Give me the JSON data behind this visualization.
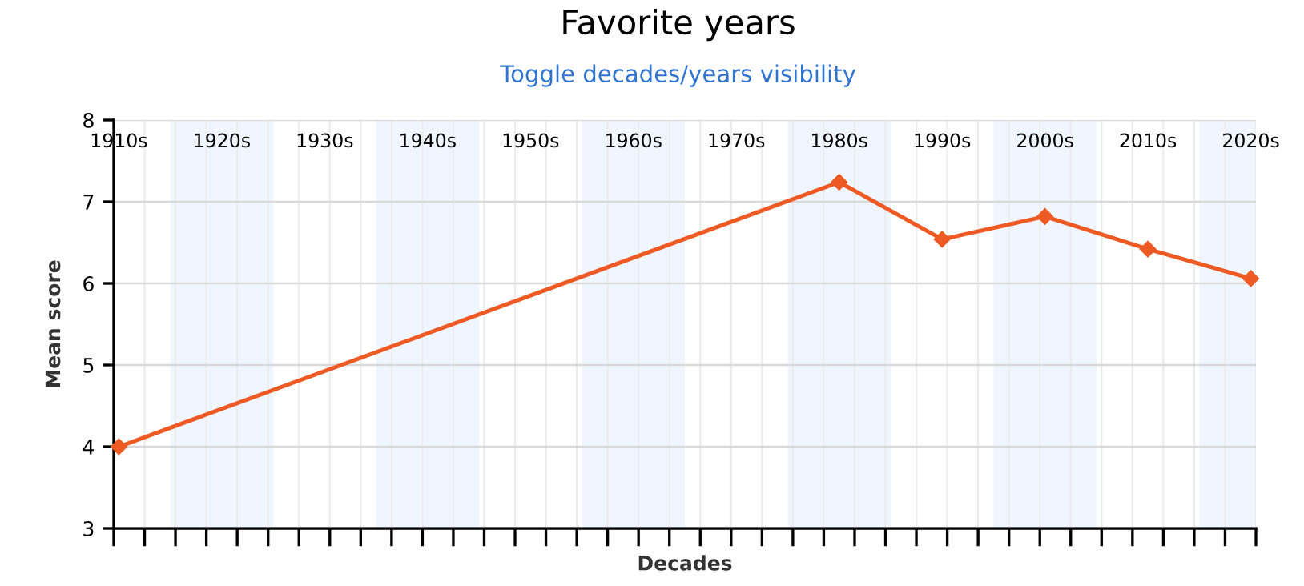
{
  "chart_data": {
    "type": "line",
    "title": "Favorite years",
    "subtitle": "Toggle decades/years visibility",
    "xlabel": "Decades",
    "ylabel": "Mean score",
    "x": [
      1910,
      1980,
      1990,
      2000,
      2010,
      2020
    ],
    "series": [
      {
        "color": "#ee5a24",
        "values": [
          4.0,
          7.24,
          6.54,
          6.82,
          6.42,
          6.06
        ]
      }
    ],
    "marker": "diamond",
    "line_style": "solid",
    "grid": true,
    "xlim": [
      1909.5,
      2020.5
    ],
    "xticks": [
      {
        "value": 1910,
        "label": "1910s"
      },
      {
        "value": 1920,
        "label": "1920s"
      },
      {
        "value": 1930,
        "label": "1930s"
      },
      {
        "value": 1940,
        "label": "1940s"
      },
      {
        "value": 1950,
        "label": "1950s"
      },
      {
        "value": 1960,
        "label": "1960s"
      },
      {
        "value": 1970,
        "label": "1970s"
      },
      {
        "value": 1980,
        "label": "1980s"
      },
      {
        "value": 1990,
        "label": "1990s"
      },
      {
        "value": 2000,
        "label": "2000s"
      },
      {
        "value": 2010,
        "label": "2010s"
      },
      {
        "value": 2020,
        "label": "2020s"
      },
      {
        "value": 1909.5,
        "label": null
      },
      {
        "value": 1912.5,
        "label": null
      },
      {
        "value": 1915.5,
        "label": null
      },
      {
        "value": 1918.5,
        "label": null
      },
      {
        "value": 1921.5,
        "label": null
      },
      {
        "value": 1924.5,
        "label": null
      },
      {
        "value": 1927.5,
        "label": null
      },
      {
        "value": 1930.5,
        "label": null
      },
      {
        "value": 1933.5,
        "label": null
      },
      {
        "value": 1936.5,
        "label": null
      },
      {
        "value": 1939.5,
        "label": null
      },
      {
        "value": 1942.5,
        "label": null
      },
      {
        "value": 1945.5,
        "label": null
      },
      {
        "value": 1948.5,
        "label": null
      },
      {
        "value": 1951.5,
        "label": null
      },
      {
        "value": 1954.5,
        "label": null
      },
      {
        "value": 1957.5,
        "label": null
      },
      {
        "value": 1960.5,
        "label": null
      },
      {
        "value": 1963.5,
        "label": null
      },
      {
        "value": 1966.5,
        "label": null
      },
      {
        "value": 1969.5,
        "label": null
      },
      {
        "value": 1972.5,
        "label": null
      },
      {
        "value": 1975.5,
        "label": null
      },
      {
        "value": 1978.5,
        "label": null
      },
      {
        "value": 1981.5,
        "label": null
      },
      {
        "value": 1984.5,
        "label": null
      },
      {
        "value": 1987.5,
        "label": null
      },
      {
        "value": 1990.5,
        "label": null
      },
      {
        "value": 1993.5,
        "label": null
      },
      {
        "value": 1996.5,
        "label": null
      },
      {
        "value": 1999.5,
        "label": null
      },
      {
        "value": 2002.5,
        "label": null
      },
      {
        "value": 2005.5,
        "label": null
      },
      {
        "value": 2008.5,
        "label": null
      },
      {
        "value": 2011.5,
        "label": null
      },
      {
        "value": 2014.5,
        "label": null
      },
      {
        "value": 2017.5,
        "label": null
      },
      {
        "value": 2020.5,
        "label": null
      }
    ],
    "ylim": [
      3,
      8
    ],
    "yticks": [
      3,
      4,
      5,
      6,
      7,
      8
    ],
    "bands": [
      {
        "axis": "x",
        "from": 1915,
        "to": 1925,
        "color": "#f0f6ff"
      },
      {
        "axis": "x",
        "from": 1935,
        "to": 1945,
        "color": "#f0f6ff"
      },
      {
        "axis": "x",
        "from": 1955,
        "to": 1965,
        "color": "#f0f6ff"
      },
      {
        "axis": "x",
        "from": 1975,
        "to": 1985,
        "color": "#f0f6ff"
      },
      {
        "axis": "x",
        "from": 1995,
        "to": 2005,
        "color": "#f0f6ff"
      },
      {
        "axis": "x",
        "from": 2015,
        "to": 2020.5,
        "color": "#f0f6ff"
      }
    ]
  }
}
